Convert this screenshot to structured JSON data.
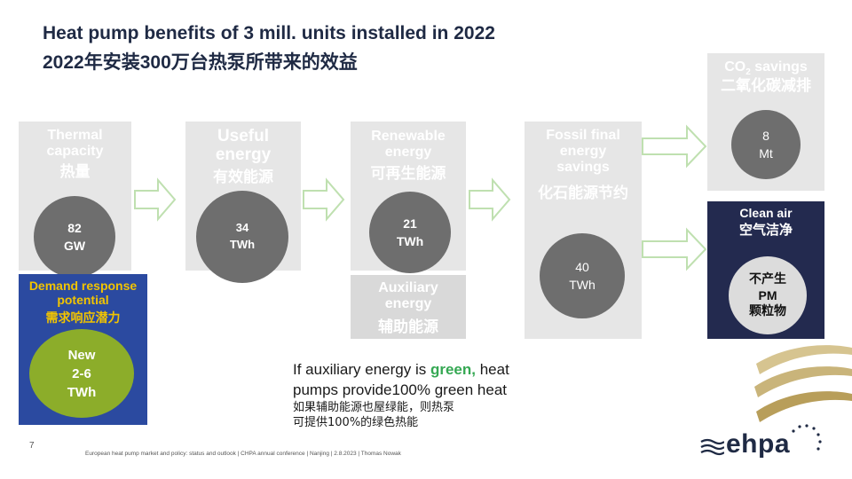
{
  "title": {
    "en": "Heat pump benefits of 3 mill. units installed in 2022",
    "zh": "2022年安装300万台热泵所带来的效益"
  },
  "thermal": {
    "label_en": "Thermal capacity",
    "label_zh": "热量",
    "value": "82",
    "unit": "GW"
  },
  "useful": {
    "label_en": "Useful energy",
    "label_zh": "有效能源",
    "value": "34",
    "unit": "TWh"
  },
  "renewable": {
    "label_en": "Renewable energy",
    "label_zh": "可再生能源",
    "value": "21",
    "unit": "TWh"
  },
  "auxiliary": {
    "label_en": "Auxiliary energy",
    "label_zh": "辅助能源"
  },
  "fossil": {
    "label_en": "Fossil final energy savings",
    "label_zh": "化石能源节约",
    "value": "40",
    "unit": "TWh"
  },
  "co2": {
    "label_en_prefix": "CO",
    "label_en_sub": "2",
    "label_en_suffix": " savings",
    "label_zh": "二氧化碳减排",
    "value": "8",
    "unit": "Mt"
  },
  "clean_air": {
    "label_en": "Clean air",
    "label_zh": "空气洁净",
    "line1": "不产生",
    "line2": "PM",
    "line3": "颗粒物"
  },
  "demand": {
    "label_en": "Demand response potential",
    "label_zh": "需求响应潜力",
    "line1": "New",
    "line2": "2-6",
    "line3": "TWh"
  },
  "note": {
    "en_a": "If auxiliary  energy is ",
    "en_green": "green,",
    "en_b": " heat",
    "en_line2": "pumps provide100% green heat",
    "zh_line1": "如果辅助能源也屋绿能，则热泵",
    "zh_line2": "可提供100%的绿色热能"
  },
  "footer": "European heat pump market and policy: status and outlook  | CHPA annual conference | Nanjing | 2.8.2023 | Thomas Nowak",
  "page_number": "7",
  "logo": {
    "text": "ehpa"
  },
  "colors": {
    "box": "#e6e6e6",
    "circle": "#6e6e6e",
    "demand_bg": "#2b4aa0",
    "demand_circle": "#8cad2a",
    "clean_bg": "#232a4f",
    "green": "#35a853"
  }
}
